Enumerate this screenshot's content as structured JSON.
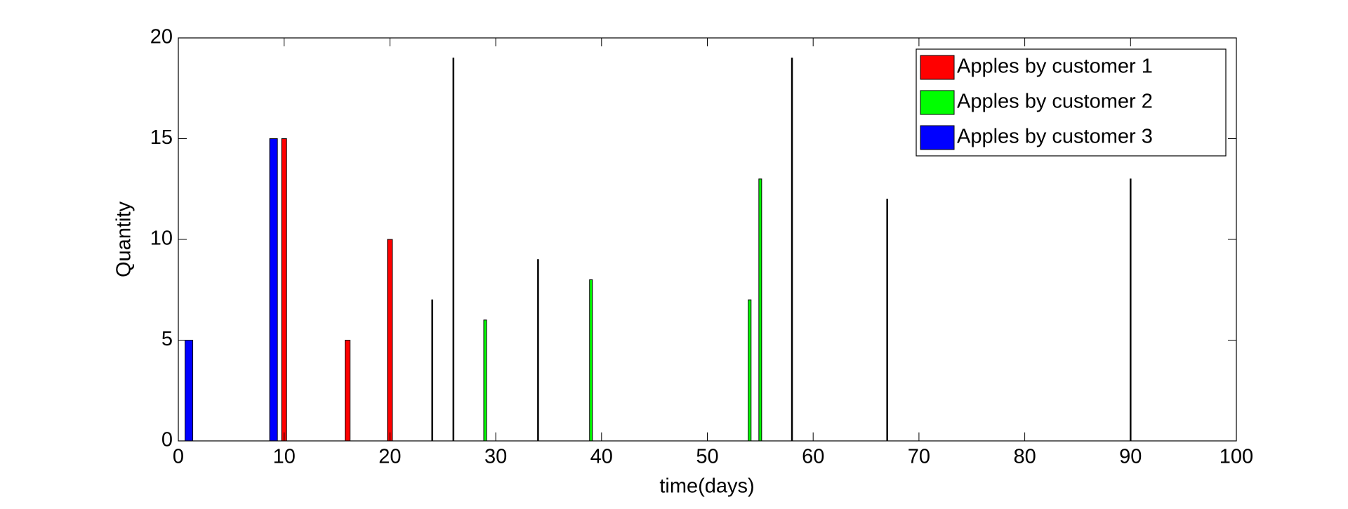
{
  "chart_data": {
    "type": "bar",
    "x_label": "time(days)",
    "y_label": "Quantity",
    "xlim": [
      0,
      100
    ],
    "xticks": [
      0,
      10,
      20,
      30,
      40,
      50,
      60,
      70,
      80,
      90,
      100
    ],
    "ylim": [
      0,
      20
    ],
    "yticks": [
      0,
      5,
      10,
      15,
      20
    ],
    "legend": "upper right",
    "grid": false,
    "series": [
      {
        "name": "Apples by customer 1",
        "color": "#ff0000",
        "x": [
          10,
          16,
          20
        ],
        "values": [
          15,
          5,
          10
        ]
      },
      {
        "name": "Apples by customer 2",
        "color": "#00ff00",
        "x": [
          29,
          39,
          54,
          55
        ],
        "values": [
          6,
          8,
          7,
          13
        ]
      },
      {
        "name": "Apples by customer 3",
        "color": "#0000ff",
        "x": [
          1,
          9
        ],
        "values": [
          5,
          15
        ]
      },
      {
        "color": "#000000",
        "x": [
          24,
          26,
          34,
          58,
          67,
          90
        ],
        "values": [
          7,
          19,
          9,
          19,
          12,
          13
        ]
      }
    ]
  }
}
